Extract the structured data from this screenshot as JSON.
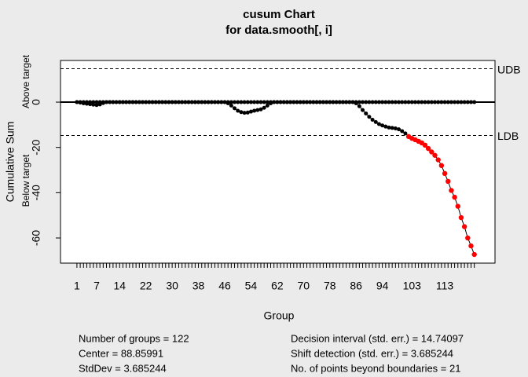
{
  "chart_data": {
    "type": "cusum",
    "title": "cusum Chart",
    "subtitle": "for data.smooth[, i]",
    "xlabel": "Group",
    "ylabel": "Cumulative Sum",
    "ylabel_above": "Above target",
    "ylabel_below": "Below target",
    "x": [
      1,
      2,
      3,
      4,
      5,
      6,
      7,
      8,
      9,
      10,
      11,
      12,
      13,
      14,
      15,
      16,
      17,
      18,
      19,
      20,
      21,
      22,
      23,
      24,
      25,
      26,
      27,
      28,
      29,
      30,
      31,
      32,
      33,
      34,
      35,
      36,
      37,
      38,
      39,
      40,
      41,
      42,
      43,
      44,
      45,
      46,
      47,
      48,
      49,
      50,
      51,
      52,
      53,
      54,
      55,
      56,
      57,
      58,
      59,
      60,
      61,
      62,
      63,
      64,
      65,
      66,
      67,
      68,
      69,
      70,
      71,
      72,
      73,
      74,
      75,
      76,
      77,
      78,
      79,
      80,
      81,
      82,
      83,
      84,
      85,
      86,
      87,
      88,
      89,
      90,
      91,
      92,
      93,
      94,
      95,
      96,
      97,
      98,
      99,
      100,
      101,
      102,
      103,
      104,
      105,
      106,
      107,
      108,
      109,
      110,
      111,
      112,
      113,
      114,
      115,
      116,
      117,
      118,
      119,
      120,
      121,
      122
    ],
    "series": [
      {
        "name": "Above target",
        "color": "#000000",
        "values": [
          0,
          0,
          0,
          0,
          0,
          0,
          0,
          0,
          0,
          0,
          0,
          0,
          0,
          0,
          0,
          0,
          0,
          0,
          0,
          0,
          0,
          0,
          0,
          0,
          0,
          0,
          0,
          0,
          0,
          0,
          0,
          0,
          0,
          0,
          0,
          0,
          0,
          0,
          0,
          0,
          0,
          0,
          0,
          0,
          0,
          0,
          0,
          0,
          0,
          0,
          0,
          0,
          0,
          0,
          0,
          0,
          0,
          0,
          0,
          0,
          0,
          0,
          0,
          0,
          0,
          0,
          0,
          0,
          0,
          0,
          0,
          0,
          0,
          0,
          0,
          0,
          0,
          0,
          0,
          0,
          0,
          0,
          0,
          0,
          0,
          0,
          0,
          0,
          0,
          0,
          0,
          0,
          0,
          0,
          0,
          0,
          0,
          0,
          0,
          0,
          0,
          0,
          0,
          0,
          0,
          0,
          0,
          0,
          0,
          0,
          0,
          0,
          0,
          0,
          0,
          0,
          0,
          0,
          0,
          0,
          0,
          0
        ]
      },
      {
        "name": "Below target",
        "color": "#000000",
        "values": [
          0,
          -0.2,
          -0.5,
          -0.7,
          -0.9,
          -1.1,
          -1.3,
          -1.0,
          -0.4,
          0,
          0,
          0,
          0,
          0,
          0,
          0,
          0,
          0,
          0,
          0,
          0,
          0,
          0,
          0,
          0,
          0,
          0,
          0,
          0,
          0,
          0,
          0,
          0,
          0,
          0,
          0,
          0,
          0,
          0,
          0,
          0,
          0,
          0,
          0,
          0,
          0,
          -0.5,
          -1.5,
          -2.7,
          -3.8,
          -4.4,
          -4.7,
          -4.6,
          -4.2,
          -3.8,
          -3.5,
          -3.2,
          -2.5,
          -1.5,
          -0.5,
          0,
          0,
          0,
          0,
          0,
          0,
          0,
          0,
          0,
          0,
          0,
          0,
          0,
          0,
          0,
          0,
          0,
          0,
          0,
          0,
          0,
          0,
          0,
          0,
          0,
          -0.5,
          -1.8,
          -3.5,
          -5.0,
          -6.5,
          -7.8,
          -8.8,
          -9.7,
          -10.3,
          -10.8,
          -11.2,
          -11.4,
          -11.6,
          -12.0,
          -12.8,
          -13.8,
          -15.2,
          -16,
          -16.6,
          -17.3,
          -18,
          -19,
          -20.5,
          -22,
          -23.5,
          -25.5,
          -28,
          -31.5,
          -35,
          -39,
          -42,
          -46,
          -51,
          -55,
          -60,
          -63.5,
          -67.3
        ]
      }
    ],
    "violation_color": "#ff0000",
    "boundaries": [
      {
        "label": "UDB",
        "value": 14.74097
      },
      {
        "label": "LDB",
        "value": -14.74097
      }
    ],
    "xlim": [
      -4,
      128.3
    ],
    "xticks": [
      1,
      7,
      14,
      22,
      30,
      38,
      46,
      54,
      62,
      70,
      78,
      86,
      94,
      103,
      113
    ],
    "ylim": [
      -71.1,
      18.4
    ],
    "yticks": [
      0,
      -20,
      -40,
      -60
    ],
    "stats": [
      "Number of groups = 122",
      "Center = 88.85991",
      "StdDev = 3.685244",
      "Decision interval (std. err.) = 14.74097",
      "Shift detection (std. err.) = 3.685244",
      "No. of points beyond boundaries = 21"
    ]
  }
}
